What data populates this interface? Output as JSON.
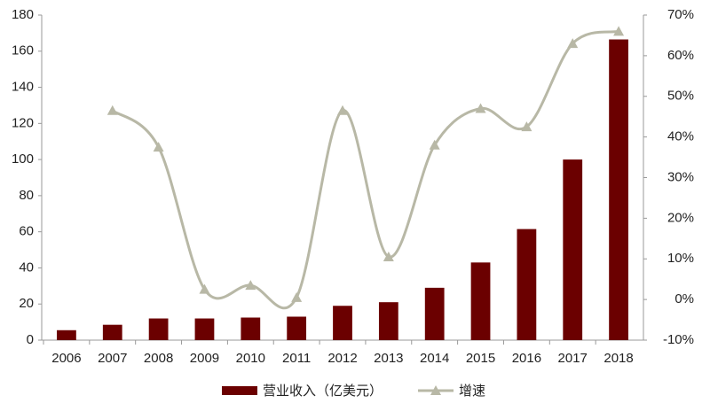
{
  "chart_data": {
    "type": "bar",
    "categories": [
      "2006",
      "2007",
      "2008",
      "2009",
      "2010",
      "2011",
      "2012",
      "2013",
      "2014",
      "2015",
      "2016",
      "2017",
      "2018"
    ],
    "series": [
      {
        "name": "营业收入（亿美元）",
        "type": "bar",
        "color": "#6b0000",
        "values": [
          5.5,
          8.5,
          12,
          12,
          12.5,
          13,
          19,
          21,
          29,
          43,
          61.5,
          100,
          166.5
        ]
      },
      {
        "name": "增速",
        "type": "line",
        "axis": "y2",
        "color": "#b8b8a6",
        "values": [
          null,
          46.5,
          37.5,
          2.5,
          3.5,
          0.5,
          46.5,
          10.5,
          38,
          47,
          42.5,
          63,
          66
        ]
      }
    ],
    "ylim": [
      0,
      180
    ],
    "yticks": [
      0,
      20,
      40,
      60,
      80,
      100,
      120,
      140,
      160,
      180
    ],
    "y2lim": [
      -10,
      70
    ],
    "y2ticks": [
      {
        "value": -10,
        "label": "-10%"
      },
      {
        "value": 0,
        "label": "0%"
      },
      {
        "value": 10,
        "label": "10%"
      },
      {
        "value": 20,
        "label": "20%"
      },
      {
        "value": 30,
        "label": "30%"
      },
      {
        "value": 40,
        "label": "40%"
      },
      {
        "value": 50,
        "label": "50%"
      },
      {
        "value": 60,
        "label": "60%"
      },
      {
        "value": 70,
        "label": "70%"
      }
    ],
    "grid": false,
    "legend": "bottom"
  }
}
